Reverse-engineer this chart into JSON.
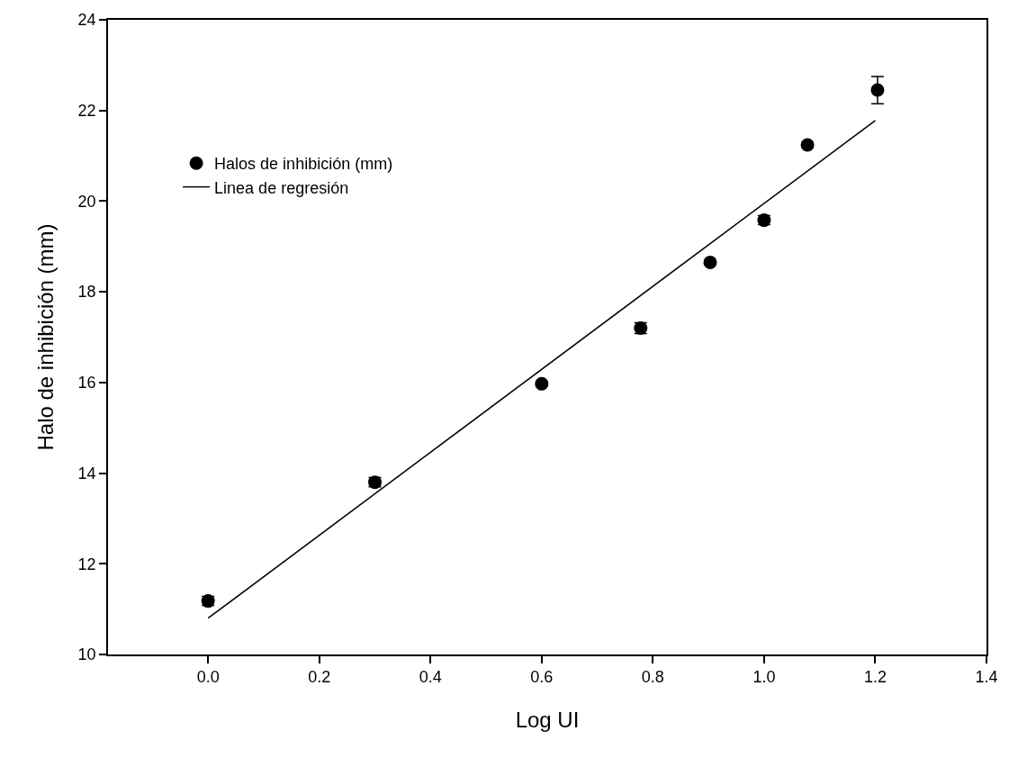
{
  "chart_data": {
    "type": "scatter",
    "xlabel": "Log UI",
    "ylabel": "Halo de inhibición (mm)",
    "xlim": [
      -0.18,
      1.4
    ],
    "xticks": [
      {
        "value": 0,
        "label": "0.0"
      },
      0.2,
      0.4,
      0.6,
      0.8,
      {
        "value": 1,
        "label": "1.0"
      },
      1.2,
      1.4
    ],
    "ylim": [
      10,
      24
    ],
    "yticks": [
      10,
      12,
      14,
      16,
      18,
      20,
      22,
      24
    ],
    "legend": "top left",
    "marker": "circle",
    "series": [
      {
        "name": "Halos de inhibición (mm)",
        "color": "#000000",
        "x": [
          0,
          0.3,
          0.6,
          0.778,
          0.903,
          1.0,
          1.078,
          1.204
        ],
        "values": [
          11.18,
          13.8,
          15.97,
          17.2,
          18.65,
          19.58,
          21.24,
          22.45
        ],
        "errors": [
          0.1,
          0.1,
          0.05,
          0.12,
          0.05,
          0.1,
          0.05,
          0.3
        ]
      },
      {
        "name": "Linea de regresión",
        "type": "line",
        "color": "#000000",
        "x": [
          0,
          1.2
        ],
        "values": [
          10.8,
          21.78
        ],
        "marker": "none",
        "line_style": "solid"
      }
    ]
  }
}
